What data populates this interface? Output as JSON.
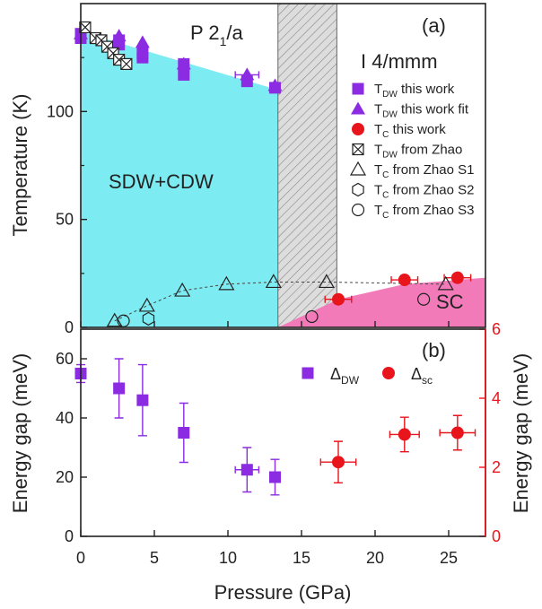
{
  "chart_data": [
    {
      "type": "scatter",
      "panel_label": "(a)",
      "ylabel": "Temperature (K)",
      "xlim": [
        0,
        27.5
      ],
      "ylim": [
        0,
        150
      ],
      "yticks": [
        0,
        50,
        100
      ],
      "phase_labels": {
        "low": "P 2",
        "low_sub": "1",
        "low_tail": "/a",
        "high": "I 4/mmm",
        "sdw": "SDW+CDW",
        "sc": "SC"
      },
      "regions": {
        "sdw_fill": [
          [
            0,
            137
          ],
          [
            13.4,
            110
          ],
          [
            13.4,
            0
          ],
          [
            0,
            0
          ]
        ],
        "hatch_x": [
          13.4,
          17.4
        ],
        "sc_fill": [
          [
            13.4,
            0
          ],
          [
            17.5,
            13
          ],
          [
            22,
            20
          ],
          [
            27.5,
            23
          ],
          [
            27.5,
            0
          ]
        ]
      },
      "series": [
        {
          "name": "T_DW this work",
          "marker": "square",
          "points": [
            [
              0,
              134
            ],
            [
              0,
              136
            ],
            [
              2.6,
              131
            ],
            [
              2.6,
              133
            ],
            [
              4.2,
              125
            ],
            [
              4.2,
              127
            ],
            [
              7,
              117
            ],
            [
              7,
              122
            ],
            [
              11.3,
              114
            ],
            [
              13.2,
              111
            ]
          ]
        },
        {
          "name": "T_DW this work fit",
          "marker": "triangle",
          "points": [
            [
              0,
              136
            ],
            [
              2.6,
              135
            ],
            [
              4.2,
              132
            ],
            [
              7,
              122
            ],
            [
              11.3,
              117
            ],
            [
              13.2,
              112
            ]
          ]
        },
        {
          "name": "T_C this work",
          "marker": "circle",
          "points": [
            [
              17.5,
              13
            ],
            [
              22,
              22
            ],
            [
              25.6,
              23
            ]
          ],
          "xerr": [
            0.9,
            0.9,
            0.9
          ]
        },
        {
          "name": "T_DW from Zhao",
          "marker": "crossbox",
          "points": [
            [
              0.3,
              139
            ],
            [
              1,
              134
            ],
            [
              1.4,
              133
            ],
            [
              1.8,
              130
            ],
            [
              2.2,
              127
            ],
            [
              2.6,
              124
            ],
            [
              3.1,
              122
            ]
          ]
        },
        {
          "name": "T_C from Zhao S1",
          "marker": "open-triangle",
          "points": [
            [
              2.3,
              3
            ],
            [
              4.5,
              10
            ],
            [
              6.9,
              17
            ],
            [
              9.9,
              20
            ],
            [
              13.1,
              21
            ],
            [
              16.7,
              21
            ],
            [
              24.8,
              20
            ]
          ]
        },
        {
          "name": "T_C from Zhao S2",
          "marker": "open-hexagon",
          "points": [
            [
              4.6,
              4
            ]
          ]
        },
        {
          "name": "T_C from Zhao S3",
          "marker": "open-circle",
          "points": [
            [
              2.9,
              3
            ],
            [
              15.7,
              5
            ],
            [
              23.3,
              13
            ]
          ]
        }
      ],
      "legend": [
        {
          "marker": "square",
          "main": "T",
          "sub": "DW",
          "tail": " this work"
        },
        {
          "marker": "triangle",
          "main": "T",
          "sub": "DW",
          "tail": " this work fit"
        },
        {
          "marker": "circle",
          "main": "T",
          "sub": "C",
          "tail": "   this work"
        },
        {
          "marker": "crossbox",
          "main": "T",
          "sub": "DW",
          "tail": " from Zhao"
        },
        {
          "marker": "open-triangle",
          "main": "T",
          "sub": "C",
          "tail": " from Zhao S1"
        },
        {
          "marker": "open-hexagon",
          "main": "T",
          "sub": "C",
          "tail": " from Zhao S2"
        },
        {
          "marker": "open-circle",
          "main": "T",
          "sub": "C",
          "tail": " from Zhao S3"
        }
      ],
      "colors": {
        "sdw": "#7cecf2",
        "sc": "#f27ab8",
        "hatch": "#cccccc",
        "purple": "#8b2be2",
        "red": "#e8151c",
        "black": "#222222"
      }
    },
    {
      "type": "scatter",
      "panel_label": "(b)",
      "xlabel": "Pressure (GPa)",
      "ylabel": "Energy gap (meV)",
      "ylabel_right": "Energy gap (meV)",
      "xlim": [
        0,
        27.5
      ],
      "xticks": [
        0,
        5,
        10,
        15,
        20,
        25
      ],
      "ylim": [
        0,
        70
      ],
      "yticks": [
        0,
        20,
        40,
        60
      ],
      "ylim_right": [
        0,
        6
      ],
      "yticks_right": [
        0,
        2,
        4,
        6
      ],
      "legend": [
        {
          "marker": "square",
          "main": "Δ",
          "sub": "DW"
        },
        {
          "marker": "circle",
          "main": "Δ",
          "sub": "sc"
        }
      ],
      "series": [
        {
          "name": "Δ_DW",
          "axis": "left",
          "marker": "square",
          "points": [
            [
              0,
              55
            ],
            [
              2.6,
              50
            ],
            [
              4.2,
              46
            ],
            [
              7,
              35
            ],
            [
              11.3,
              22.5
            ],
            [
              13.2,
              20
            ]
          ],
          "yerr": [
            3,
            10,
            12,
            10,
            7.5,
            6
          ],
          "xerr": [
            0,
            0,
            0,
            0,
            0.8,
            0
          ]
        },
        {
          "name": "Δ_sc",
          "axis": "right",
          "marker": "circle",
          "points": [
            [
              17.5,
              2.15
            ],
            [
              22,
              2.95
            ],
            [
              25.6,
              3.0
            ]
          ],
          "yerr": [
            0.6,
            0.5,
            0.5
          ],
          "xerr": [
            1.2,
            1.0,
            1.2
          ]
        }
      ]
    }
  ]
}
